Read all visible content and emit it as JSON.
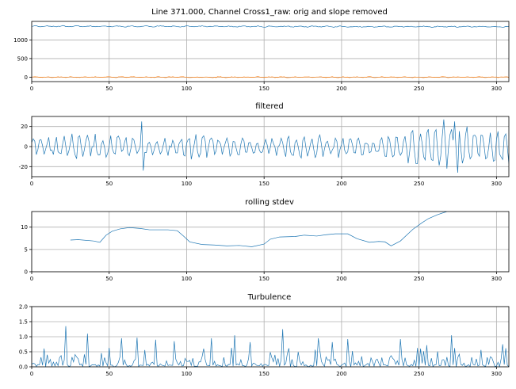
{
  "colors": {
    "series1": "#1f77b4",
    "series2": "#ff7f0e",
    "grid": "#b0b0b0",
    "axis": "#000000"
  },
  "chart_data": [
    {
      "type": "line",
      "title": "Line 371.000, Channel Cross1_raw: orig and slope removed",
      "xlim": [
        0,
        308
      ],
      "ylim": [
        -120,
        1500
      ],
      "xticks": [
        0,
        50,
        100,
        150,
        200,
        250,
        300
      ],
      "yticks": [
        0,
        500,
        1000
      ],
      "grid": true,
      "series": [
        {
          "role": "orig",
          "color": "#1f77b4",
          "style": "noisy",
          "seed": 11,
          "base": 1370,
          "drift": -0.05,
          "amp": 18,
          "noise": 10,
          "period": 9,
          "x": [
            0,
            308
          ]
        },
        {
          "role": "slope removed",
          "color": "#ff7f0e",
          "style": "noisy",
          "seed": 23,
          "base": 0,
          "drift": 0,
          "amp": 12,
          "noise": 8,
          "period": 8,
          "x": [
            0,
            308
          ]
        }
      ]
    },
    {
      "type": "line",
      "title": "filtered",
      "xlim": [
        0,
        308
      ],
      "ylim": [
        -30,
        30
      ],
      "xticks": [
        0,
        50,
        100,
        150,
        200,
        250,
        300
      ],
      "yticks": [
        -20,
        0,
        20
      ],
      "grid": true,
      "series": [
        {
          "color": "#1f77b4",
          "style": "oscillating",
          "seed": 7,
          "base": 0,
          "amp": 9,
          "noise": 6,
          "period": 5,
          "x": [
            0,
            308
          ],
          "peaks": [
            [
              71,
              25
            ],
            [
              72,
              -24
            ],
            [
              266,
              27
            ],
            [
              268,
              -22
            ],
            [
              273,
              25
            ],
            [
              275,
              -26
            ],
            [
              281,
              20
            ]
          ]
        }
      ]
    },
    {
      "type": "line",
      "title": "rolling stdev",
      "xlim": [
        0,
        308
      ],
      "ylim": [
        0,
        13.5
      ],
      "xticks": [
        0,
        50,
        100,
        150,
        200,
        250,
        300
      ],
      "yticks": [
        0,
        5,
        10
      ],
      "grid": true,
      "series": [
        {
          "color": "#1f77b4",
          "style": "smooth",
          "points": [
            [
              25,
              7.1
            ],
            [
              30,
              7.2
            ],
            [
              40,
              6.9
            ],
            [
              44,
              6.6
            ],
            [
              48,
              8.2
            ],
            [
              52,
              9.1
            ],
            [
              57,
              9.6
            ],
            [
              63,
              9.9
            ],
            [
              70,
              9.7
            ],
            [
              76,
              9.4
            ],
            [
              82,
              9.4
            ],
            [
              88,
              9.4
            ],
            [
              94,
              9.2
            ],
            [
              98,
              8.0
            ],
            [
              102,
              6.7
            ],
            [
              110,
              6.1
            ],
            [
              118,
              6.0
            ],
            [
              126,
              5.8
            ],
            [
              134,
              5.9
            ],
            [
              142,
              5.6
            ],
            [
              150,
              6.2
            ],
            [
              154,
              7.3
            ],
            [
              160,
              7.8
            ],
            [
              170,
              7.9
            ],
            [
              176,
              8.2
            ],
            [
              184,
              8.0
            ],
            [
              190,
              8.3
            ],
            [
              196,
              8.5
            ],
            [
              204,
              8.5
            ],
            [
              210,
              7.4
            ],
            [
              218,
              6.6
            ],
            [
              224,
              6.8
            ],
            [
              228,
              6.7
            ],
            [
              232,
              5.8
            ],
            [
              238,
              6.9
            ],
            [
              246,
              9.5
            ],
            [
              252,
              11.0
            ],
            [
              256,
              11.9
            ],
            [
              262,
              12.8
            ],
            [
              268,
              13.5
            ]
          ]
        }
      ]
    },
    {
      "type": "line",
      "title": "Turbulence",
      "xlim": [
        0,
        308
      ],
      "ylim": [
        0,
        2.0
      ],
      "xticks": [
        0,
        50,
        100,
        150,
        200,
        250,
        300
      ],
      "yticks": [
        0.0,
        0.5,
        1.0,
        1.5,
        2.0
      ],
      "ytick_labels": [
        "0.0",
        "0.5",
        "1.0",
        "1.5",
        "2.0"
      ],
      "grid": true,
      "series": [
        {
          "color": "#1f77b4",
          "style": "spiky",
          "seed": 41,
          "x": [
            0,
            308
          ],
          "peaks": [
            [
              22,
              1.35
            ],
            [
              36,
              1.1
            ],
            [
              58,
              0.95
            ],
            [
              68,
              0.97
            ],
            [
              80,
              0.9
            ],
            [
              92,
              0.85
            ],
            [
              116,
              0.95
            ],
            [
              131,
              1.05
            ],
            [
              141,
              0.82
            ],
            [
              162,
              1.25
            ],
            [
              185,
              0.95
            ],
            [
              194,
              0.82
            ],
            [
              204,
              0.92
            ],
            [
              238,
              0.92
            ],
            [
              255,
              0.72
            ],
            [
              271,
              1.05
            ],
            [
              304,
              0.75
            ]
          ]
        }
      ]
    }
  ]
}
